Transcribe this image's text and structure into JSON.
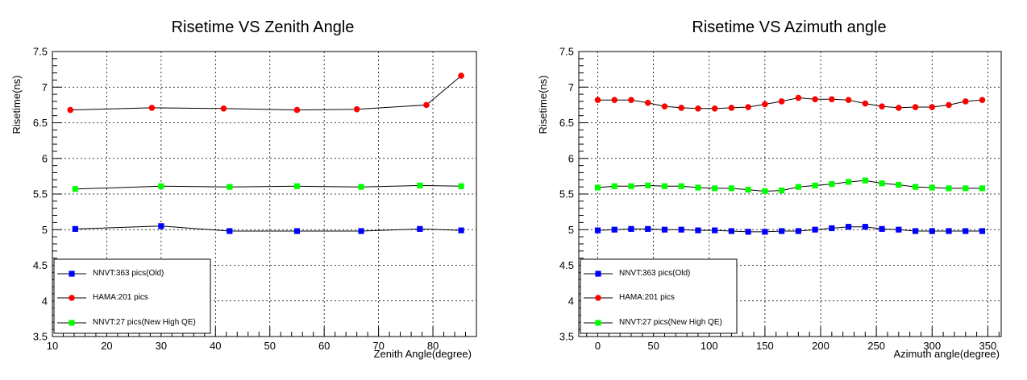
{
  "chart_data": [
    {
      "type": "line",
      "title": "Risetime VS Zenith Angle",
      "xlabel": "Zenith Angle(degree)",
      "ylabel": "Risetime(ns)",
      "xlim": [
        10,
        88
      ],
      "ylim": [
        3.5,
        7.5
      ],
      "xticks": [
        10,
        20,
        30,
        40,
        50,
        60,
        70,
        80
      ],
      "yticks": [
        3.5,
        4,
        4.5,
        5,
        5.5,
        6,
        6.5,
        7,
        7.5
      ],
      "grid": true,
      "legend_position": "bottom-left",
      "series": [
        {
          "name": "NNVT:363 pics(Old)",
          "marker": "square",
          "color": "#0000ff",
          "x": [
            14.2,
            30.0,
            42.6,
            55.0,
            66.8,
            77.6,
            85.2
          ],
          "y": [
            5.01,
            5.05,
            4.98,
            4.98,
            4.98,
            5.01,
            4.99
          ]
        },
        {
          "name": "HAMA:201 pics",
          "marker": "circle",
          "color": "#ff0000",
          "x": [
            13.3,
            28.3,
            41.5,
            55.0,
            66.0,
            78.8,
            85.2
          ],
          "y": [
            6.68,
            6.71,
            6.7,
            6.68,
            6.69,
            6.75,
            7.16
          ]
        },
        {
          "name": "NNVT:27 pics(New High QE)",
          "marker": "square",
          "color": "#00ff00",
          "x": [
            14.2,
            30.0,
            42.6,
            55.0,
            66.8,
            77.6,
            85.2
          ],
          "y": [
            5.57,
            5.61,
            5.6,
            5.61,
            5.6,
            5.62,
            5.61
          ]
        }
      ]
    },
    {
      "type": "line",
      "title": "Risetime VS Azimuth angle",
      "xlabel": "Azimuth angle(degree)",
      "ylabel": "Risetime(ns)",
      "xlim": [
        -17,
        362
      ],
      "ylim": [
        3.5,
        7.5
      ],
      "xticks": [
        0,
        50,
        100,
        150,
        200,
        250,
        300,
        350
      ],
      "yticks": [
        3.5,
        4,
        4.5,
        5,
        5.5,
        6,
        6.5,
        7,
        7.5
      ],
      "grid": true,
      "legend_position": "bottom-left",
      "series": [
        {
          "name": "NNVT:363 pics(Old)",
          "marker": "square",
          "color": "#0000ff",
          "x": [
            0,
            15,
            30,
            45,
            60,
            75,
            90,
            105,
            120,
            135,
            150,
            165,
            180,
            195,
            210,
            225,
            240,
            255,
            270,
            285,
            300,
            315,
            330,
            345
          ],
          "y": [
            4.99,
            5.0,
            5.01,
            5.01,
            5.0,
            5.0,
            4.99,
            4.99,
            4.98,
            4.97,
            4.97,
            4.98,
            4.98,
            5.0,
            5.02,
            5.04,
            5.04,
            5.01,
            5.0,
            4.98,
            4.98,
            4.98,
            4.98,
            4.98
          ]
        },
        {
          "name": "HAMA:201 pics",
          "marker": "circle",
          "color": "#ff0000",
          "x": [
            0,
            15,
            30,
            45,
            60,
            75,
            90,
            105,
            120,
            135,
            150,
            165,
            180,
            195,
            210,
            225,
            240,
            255,
            270,
            285,
            300,
            315,
            330,
            345
          ],
          "y": [
            6.82,
            6.82,
            6.82,
            6.78,
            6.73,
            6.71,
            6.7,
            6.7,
            6.71,
            6.72,
            6.76,
            6.8,
            6.85,
            6.83,
            6.83,
            6.82,
            6.77,
            6.73,
            6.71,
            6.72,
            6.72,
            6.75,
            6.8,
            6.82
          ]
        },
        {
          "name": "NNVT:27 pics(New High QE)",
          "marker": "square",
          "color": "#00ff00",
          "x": [
            0,
            15,
            30,
            45,
            60,
            75,
            90,
            105,
            120,
            135,
            150,
            165,
            180,
            195,
            210,
            225,
            240,
            255,
            270,
            285,
            300,
            315,
            330,
            345
          ],
          "y": [
            5.59,
            5.61,
            5.61,
            5.62,
            5.61,
            5.61,
            5.59,
            5.58,
            5.58,
            5.56,
            5.54,
            5.55,
            5.6,
            5.62,
            5.64,
            5.67,
            5.69,
            5.65,
            5.63,
            5.6,
            5.59,
            5.58,
            5.58,
            5.58
          ]
        }
      ]
    }
  ]
}
